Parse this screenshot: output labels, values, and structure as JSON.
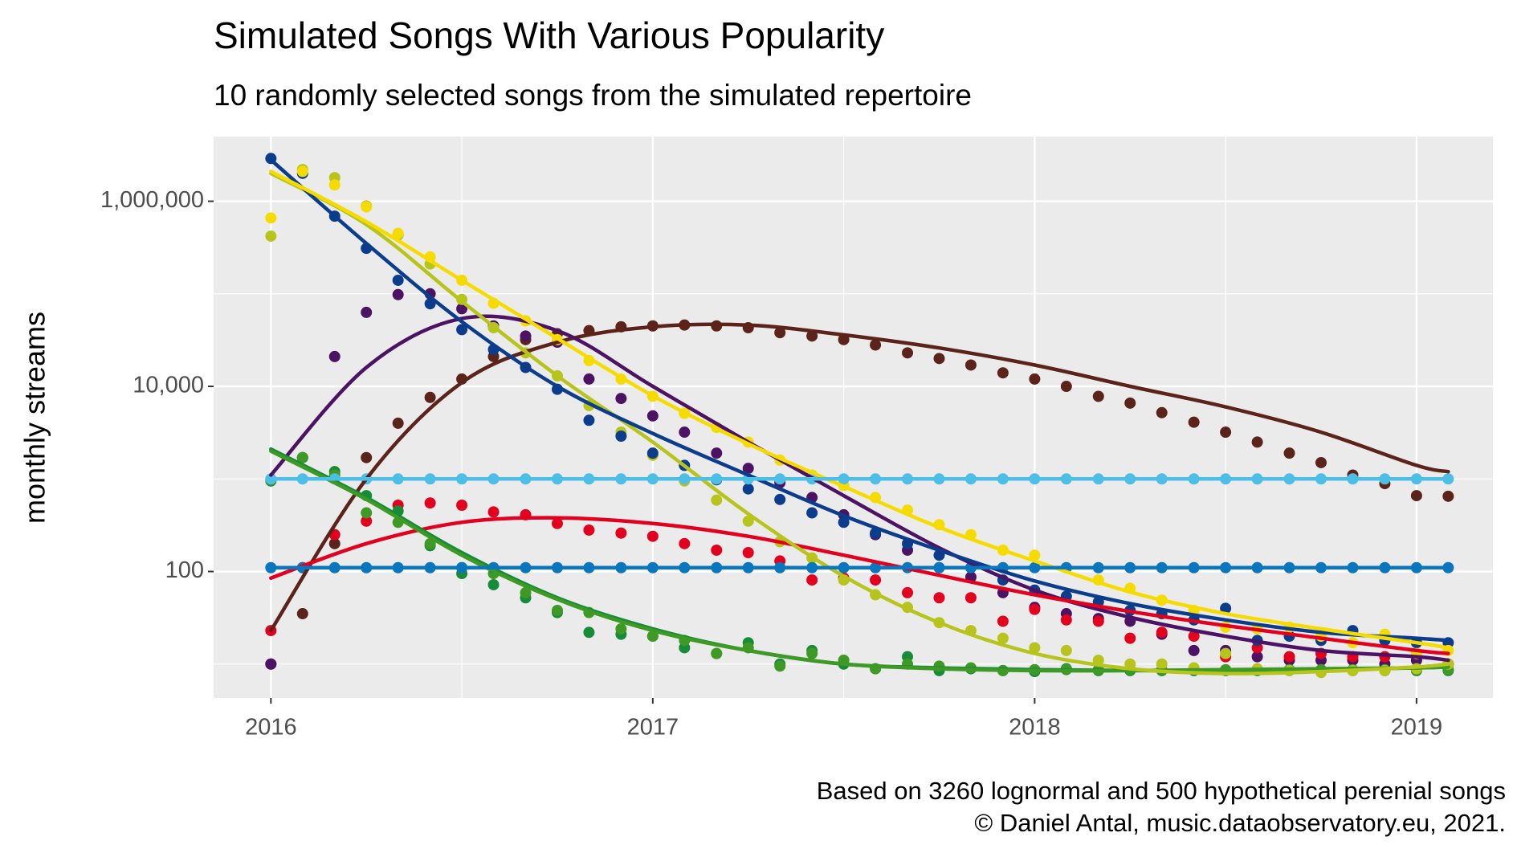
{
  "chart_data": {
    "type": "scatter",
    "title": "Simulated Songs With Various Popularity",
    "subtitle": "10 randomly selected songs from the simulated repertoire",
    "y_label": "monthly streams",
    "caption": [
      "Based on 3260 lognormal and 500 hypothetical perenial songs",
      "© Daniel Antal, music.dataobservatory.eu, 2021."
    ],
    "y_log": true,
    "grid": true,
    "xlim": [
      2015.85,
      2019.2
    ],
    "xticks": [
      2016,
      2017,
      2018,
      2019
    ],
    "minor_xticks": [
      2016.5,
      2017.5,
      2018.5
    ],
    "ylim": [
      4.3,
      5000000
    ],
    "yticks": [
      {
        "value": 100,
        "label": "100"
      },
      {
        "value": 10000,
        "label": "10,000"
      },
      {
        "value": 1000000,
        "label": "1,000,000"
      }
    ],
    "minor_yticks": [
      10,
      1000,
      100000
    ],
    "x": [
      2016,
      2016.083,
      2016.167,
      2016.25,
      2016.333,
      2016.417,
      2016.5,
      2016.583,
      2016.667,
      2016.75,
      2016.833,
      2016.917,
      2017,
      2017.083,
      2017.167,
      2017.25,
      2017.333,
      2017.417,
      2017.5,
      2017.583,
      2017.667,
      2017.75,
      2017.833,
      2017.917,
      2018,
      2018.083,
      2018.167,
      2018.25,
      2018.333,
      2018.417,
      2018.5,
      2018.583,
      2018.667,
      2018.75,
      2018.833,
      2018.917,
      2019,
      2019.083
    ],
    "fit_x": [
      2016,
      2016.25,
      2016.5,
      2016.75,
      2017,
      2017.25,
      2017.5,
      2017.75,
      2018,
      2018.25,
      2018.5,
      2018.75,
      2019,
      2019.083
    ],
    "series": [
      {
        "color": "#5b2319",
        "values": [
          10,
          35,
          200,
          1700,
          4000,
          7600,
          12000,
          21000,
          32000,
          37000,
          40000,
          44000,
          45000,
          46000,
          45000,
          43000,
          38000,
          35000,
          32000,
          28000,
          23000,
          20000,
          17000,
          14000,
          12000,
          10000,
          7800,
          6600,
          5200,
          4100,
          3200,
          2500,
          1900,
          1500,
          1100,
          890,
          660,
          650
        ],
        "fit": [
          23,
          1000,
          11000,
          30000,
          44000,
          46000,
          36000,
          26000,
          17000,
          10000,
          6000,
          3200,
          1400,
          1200
        ]
      },
      {
        "color": "#4c1263",
        "values": [
          10,
          1700,
          21000,
          63000,
          98000,
          100000,
          69000,
          45000,
          35000,
          30000,
          12000,
          7400,
          4800,
          3200,
          1900,
          1300,
          910,
          630,
          410,
          250,
          170,
          110,
          87,
          59,
          41,
          35,
          31,
          29,
          21,
          14,
          14,
          12,
          11,
          11,
          11,
          10,
          11,
          10
        ],
        "fit": [
          1100,
          16000,
          54000,
          40000,
          10000,
          2500,
          660,
          180,
          63,
          32,
          20,
          14,
          12,
          11
        ]
      },
      {
        "color": "#e2001e",
        "values": [
          23,
          110,
          250,
          350,
          520,
          550,
          520,
          440,
          410,
          330,
          280,
          260,
          240,
          200,
          170,
          160,
          130,
          81,
          85,
          81,
          59,
          52,
          52,
          29,
          39,
          30,
          29,
          19,
          22,
          20,
          12,
          15,
          12,
          13,
          12,
          12,
          13,
          10
        ],
        "fit": [
          85,
          200,
          340,
          380,
          330,
          240,
          150,
          91,
          56,
          37,
          26,
          19,
          14,
          13
        ]
      },
      {
        "color": "#178c38",
        "values": [
          950,
          1700,
          1200,
          660,
          450,
          190,
          95,
          72,
          52,
          36,
          22,
          21,
          20,
          15,
          13,
          17,
          10,
          14,
          10,
          8.9,
          12,
          8.5,
          8.9,
          8.5,
          8.3,
          8.9,
          8.5,
          8.5,
          8.5,
          8.5,
          8.5,
          8.5,
          8.5,
          8.5,
          8.5,
          8.5,
          8.5,
          8.5
        ],
        "fit": [
          2100,
          630,
          160,
          52,
          24,
          14,
          10,
          9.1,
          8.7,
          8.5,
          8.5,
          8.7,
          9.1,
          9.3
        ]
      },
      {
        "color": "#3e9a25",
        "values": [
          980,
          1700,
          1100,
          430,
          340,
          200,
          110,
          95,
          59,
          38,
          36,
          24,
          20,
          18,
          13,
          15,
          9.5,
          13,
          11,
          8.9,
          10,
          9.5,
          9.1,
          8.5,
          8.7,
          8.7,
          8.7,
          8.7,
          8.7,
          8.7,
          8.7,
          8.7,
          8.7,
          8.7,
          8.7,
          8.7,
          8.7,
          8.7
        ],
        "fit": [
          2000,
          600,
          150,
          50,
          23,
          14,
          10,
          8.9,
          8.5,
          8.5,
          8.7,
          8.9,
          9.1,
          9.3
        ]
      },
      {
        "color": "#b6c41c",
        "values": [
          420000,
          2200000,
          1800000,
          890000,
          430000,
          210000,
          87000,
          43000,
          23000,
          13000,
          6200,
          3200,
          1800,
          950,
          590,
          350,
          210,
          140,
          81,
          56,
          41,
          28,
          23,
          19,
          15,
          14,
          11,
          10,
          10,
          9.1,
          13,
          8.9,
          8.5,
          8.1,
          8.5,
          8.5,
          8.9,
          10
        ],
        "fit": [
          2000000,
          560000,
          83000,
          13000,
          2500,
          420,
          89,
          28,
          13,
          8.9,
          7.9,
          8.3,
          9.3,
          10
        ]
      },
      {
        "color": "#0b3d8c",
        "values": [
          2900000,
          2000000,
          690000,
          310000,
          140000,
          78000,
          41000,
          25000,
          16000,
          9300,
          4300,
          2900,
          1900,
          1400,
          980,
          780,
          600,
          430,
          340,
          260,
          200,
          150,
          110,
          81,
          63,
          54,
          47,
          38,
          35,
          30,
          40,
          18,
          20,
          18,
          23,
          18,
          17,
          17
        ],
        "fit": [
          2800000,
          350000,
          50000,
          10000,
          3100,
          1100,
          400,
          170,
          79,
          45,
          30,
          22,
          19,
          18
        ]
      },
      {
        "color": "#f6db00",
        "values": [
          660000,
          2100000,
          1500000,
          870000,
          450000,
          250000,
          140000,
          79000,
          51000,
          32000,
          19000,
          12000,
          7800,
          5100,
          3600,
          2500,
          1600,
          1100,
          850,
          630,
          460,
          320,
          250,
          170,
          150,
          110,
          81,
          66,
          49,
          38,
          25,
          24,
          25,
          20,
          17,
          21,
          13,
          14
        ],
        "fit": [
          2100000,
          600000,
          140000,
          33000,
          7900,
          2400,
          830,
          300,
          130,
          60,
          35,
          24,
          17,
          15
        ]
      },
      {
        "color": "#0a76bd",
        "values": [
          110,
          110,
          110,
          110,
          110,
          110,
          110,
          110,
          110,
          110,
          110,
          110,
          110,
          110,
          110,
          110,
          110,
          110,
          110,
          110,
          110,
          110,
          110,
          110,
          110,
          110,
          110,
          110,
          110,
          110,
          110,
          110,
          110,
          110,
          110,
          110,
          110,
          110
        ],
        "fit": [
          110,
          110,
          110,
          110,
          110,
          110,
          110,
          110,
          110,
          110,
          110,
          110,
          110,
          110
        ]
      },
      {
        "color": "#4dbfe6",
        "values": [
          1000,
          1000,
          1000,
          1000,
          1000,
          1000,
          1000,
          1000,
          1000,
          1000,
          1000,
          1000,
          1000,
          1000,
          1000,
          1000,
          1000,
          1000,
          1000,
          1000,
          1000,
          1000,
          1000,
          1000,
          1000,
          1000,
          1000,
          1000,
          1000,
          1000,
          1000,
          1000,
          1000,
          1000,
          1000,
          1000,
          1000,
          1000
        ],
        "fit": [
          1000,
          1000,
          1000,
          1000,
          1000,
          1000,
          1000,
          1000,
          1000,
          1000,
          1000,
          1000,
          1000,
          1000
        ]
      }
    ]
  }
}
